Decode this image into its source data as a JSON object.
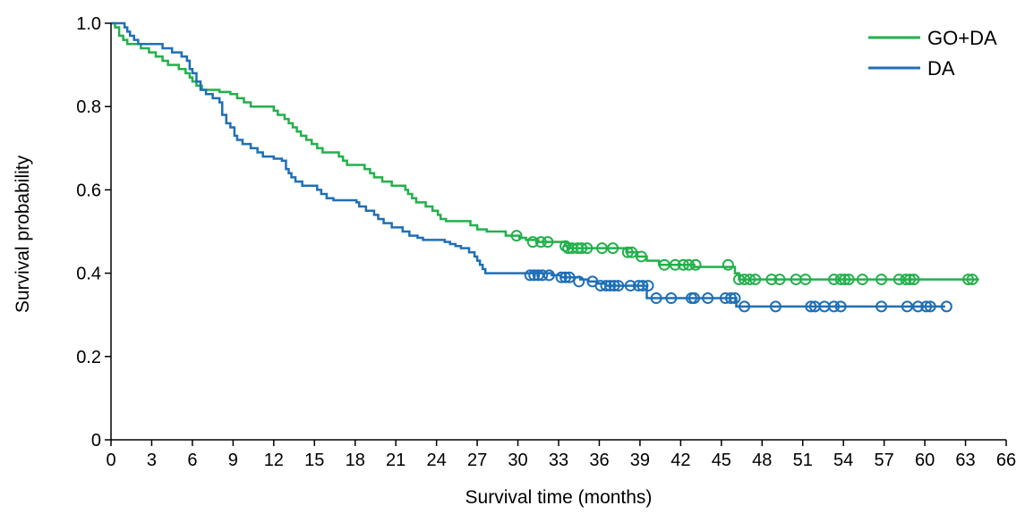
{
  "chart_data": {
    "type": "line",
    "subtype": "kaplan-meier",
    "xlabel": "Survival time (months)",
    "ylabel": "Survival probability",
    "xlim": [
      0,
      66
    ],
    "ylim": [
      0,
      1.0
    ],
    "xticks": [
      "0",
      "3",
      "6",
      "9",
      "12",
      "15",
      "18",
      "21",
      "24",
      "27",
      "30",
      "33",
      "36",
      "39",
      "42",
      "45",
      "48",
      "51",
      "54",
      "57",
      "60",
      "63",
      "66"
    ],
    "yticks": [
      "0",
      "0.2",
      "0.4",
      "0.6",
      "0.8",
      "1.0"
    ],
    "grid": false,
    "legend_position": "top-right",
    "series": [
      {
        "name": "GO+DA",
        "color": "#22b04b",
        "steps": [
          [
            0,
            1.0
          ],
          [
            0.3,
            0.99
          ],
          [
            0.6,
            0.97
          ],
          [
            0.9,
            0.96
          ],
          [
            1.2,
            0.95
          ],
          [
            2.2,
            0.94
          ],
          [
            2.8,
            0.93
          ],
          [
            3.3,
            0.92
          ],
          [
            3.8,
            0.91
          ],
          [
            4.2,
            0.9
          ],
          [
            5.0,
            0.89
          ],
          [
            5.5,
            0.88
          ],
          [
            5.8,
            0.87
          ],
          [
            6.0,
            0.86
          ],
          [
            6.3,
            0.85
          ],
          [
            6.7,
            0.84
          ],
          [
            8.0,
            0.835
          ],
          [
            8.8,
            0.83
          ],
          [
            9.3,
            0.82
          ],
          [
            9.8,
            0.81
          ],
          [
            10.3,
            0.8
          ],
          [
            12.0,
            0.79
          ],
          [
            12.3,
            0.78
          ],
          [
            12.8,
            0.77
          ],
          [
            13.1,
            0.76
          ],
          [
            13.4,
            0.75
          ],
          [
            13.7,
            0.74
          ],
          [
            14.0,
            0.73
          ],
          [
            14.4,
            0.72
          ],
          [
            14.8,
            0.71
          ],
          [
            15.2,
            0.7
          ],
          [
            15.6,
            0.69
          ],
          [
            16.8,
            0.68
          ],
          [
            17.1,
            0.67
          ],
          [
            17.4,
            0.66
          ],
          [
            18.7,
            0.65
          ],
          [
            19.1,
            0.64
          ],
          [
            19.4,
            0.63
          ],
          [
            20.0,
            0.62
          ],
          [
            20.7,
            0.61
          ],
          [
            21.7,
            0.6
          ],
          [
            21.9,
            0.59
          ],
          [
            22.2,
            0.58
          ],
          [
            22.5,
            0.57
          ],
          [
            23.2,
            0.56
          ],
          [
            23.7,
            0.55
          ],
          [
            24.1,
            0.54
          ],
          [
            24.3,
            0.53
          ],
          [
            24.7,
            0.525
          ],
          [
            26.5,
            0.515
          ],
          [
            27.0,
            0.505
          ],
          [
            27.7,
            0.5
          ],
          [
            29.1,
            0.49
          ],
          [
            30.1,
            0.485
          ],
          [
            30.6,
            0.48
          ],
          [
            31.5,
            0.475
          ],
          [
            33.5,
            0.465
          ],
          [
            33.7,
            0.46
          ],
          [
            38.0,
            0.45
          ],
          [
            38.8,
            0.44
          ],
          [
            39.5,
            0.43
          ],
          [
            40.4,
            0.42
          ],
          [
            43.0,
            0.415
          ],
          [
            46.0,
            0.4
          ],
          [
            46.3,
            0.385
          ],
          [
            64,
            0.385
          ]
        ],
        "censors": [
          29.9,
          31.1,
          31.7,
          32.2,
          33.5,
          33.7,
          34.0,
          34.4,
          34.7,
          35.1,
          36.2,
          37.0,
          38.1,
          38.4,
          39.1,
          40.8,
          41.6,
          42.2,
          42.6,
          43.1,
          45.5,
          46.3,
          46.7,
          47.1,
          47.5,
          48.7,
          49.3,
          50.5,
          51.2,
          53.3,
          53.8,
          54.1,
          54.4,
          55.4,
          56.8,
          58.1,
          58.6,
          58.9,
          59.2,
          63.2,
          63.5
        ],
        "censor_levels": [
          0.49,
          0.475,
          0.475,
          0.475,
          0.465,
          0.46,
          0.46,
          0.46,
          0.46,
          0.46,
          0.46,
          0.46,
          0.45,
          0.45,
          0.44,
          0.42,
          0.42,
          0.42,
          0.42,
          0.42,
          0.42,
          0.385,
          0.385,
          0.385,
          0.385,
          0.385,
          0.385,
          0.385,
          0.385,
          0.385,
          0.385,
          0.385,
          0.385,
          0.385,
          0.385,
          0.385,
          0.385,
          0.385,
          0.385,
          0.385,
          0.385
        ]
      },
      {
        "name": "DA",
        "color": "#1f6fb5",
        "steps": [
          [
            0,
            1.0
          ],
          [
            1.0,
            0.99
          ],
          [
            1.2,
            0.98
          ],
          [
            1.4,
            0.97
          ],
          [
            1.7,
            0.96
          ],
          [
            2.0,
            0.95
          ],
          [
            3.8,
            0.94
          ],
          [
            4.5,
            0.93
          ],
          [
            5.2,
            0.92
          ],
          [
            5.6,
            0.91
          ],
          [
            5.8,
            0.89
          ],
          [
            6.0,
            0.88
          ],
          [
            6.3,
            0.86
          ],
          [
            6.6,
            0.84
          ],
          [
            7.0,
            0.83
          ],
          [
            7.5,
            0.82
          ],
          [
            8.0,
            0.81
          ],
          [
            8.2,
            0.78
          ],
          [
            8.5,
            0.76
          ],
          [
            8.8,
            0.75
          ],
          [
            9.1,
            0.73
          ],
          [
            9.3,
            0.72
          ],
          [
            9.7,
            0.71
          ],
          [
            10.3,
            0.7
          ],
          [
            10.8,
            0.69
          ],
          [
            11.2,
            0.68
          ],
          [
            12.0,
            0.675
          ],
          [
            12.6,
            0.67
          ],
          [
            12.9,
            0.65
          ],
          [
            13.1,
            0.64
          ],
          [
            13.3,
            0.63
          ],
          [
            13.6,
            0.62
          ],
          [
            14.1,
            0.61
          ],
          [
            15.2,
            0.6
          ],
          [
            15.5,
            0.59
          ],
          [
            15.9,
            0.58
          ],
          [
            16.4,
            0.575
          ],
          [
            18.1,
            0.57
          ],
          [
            18.3,
            0.56
          ],
          [
            18.8,
            0.55
          ],
          [
            19.4,
            0.54
          ],
          [
            19.7,
            0.53
          ],
          [
            20.1,
            0.52
          ],
          [
            20.7,
            0.51
          ],
          [
            21.5,
            0.5
          ],
          [
            22.0,
            0.49
          ],
          [
            22.6,
            0.485
          ],
          [
            23.0,
            0.48
          ],
          [
            24.6,
            0.475
          ],
          [
            25.0,
            0.47
          ],
          [
            25.4,
            0.465
          ],
          [
            25.8,
            0.46
          ],
          [
            26.4,
            0.45
          ],
          [
            26.8,
            0.44
          ],
          [
            27.0,
            0.43
          ],
          [
            27.2,
            0.42
          ],
          [
            27.4,
            0.41
          ],
          [
            27.6,
            0.4
          ],
          [
            32.5,
            0.395
          ],
          [
            33.2,
            0.39
          ],
          [
            34.6,
            0.385
          ],
          [
            35.2,
            0.38
          ],
          [
            35.8,
            0.375
          ],
          [
            36.5,
            0.37
          ],
          [
            39.5,
            0.34
          ],
          [
            46.1,
            0.32
          ],
          [
            61.5,
            0.32
          ]
        ],
        "censors": [
          30.9,
          31.2,
          31.5,
          31.8,
          32.3,
          33.2,
          33.5,
          33.8,
          34.5,
          35.5,
          36.1,
          36.5,
          36.8,
          37.1,
          37.4,
          38.3,
          38.9,
          39.2,
          39.6,
          40.2,
          41.3,
          42.8,
          43.0,
          44.0,
          45.3,
          45.7,
          46.0,
          46.7,
          49.0,
          51.6,
          51.9,
          52.6,
          53.3,
          53.8,
          56.8,
          58.7,
          59.5,
          60.1,
          60.4,
          61.6
        ],
        "censor_levels": [
          0.395,
          0.395,
          0.395,
          0.395,
          0.395,
          0.39,
          0.39,
          0.39,
          0.38,
          0.38,
          0.37,
          0.37,
          0.37,
          0.37,
          0.37,
          0.37,
          0.37,
          0.37,
          0.37,
          0.34,
          0.34,
          0.34,
          0.34,
          0.34,
          0.34,
          0.34,
          0.34,
          0.32,
          0.32,
          0.32,
          0.32,
          0.32,
          0.32,
          0.32,
          0.32,
          0.32,
          0.32,
          0.32,
          0.32,
          0.32
        ]
      }
    ]
  }
}
